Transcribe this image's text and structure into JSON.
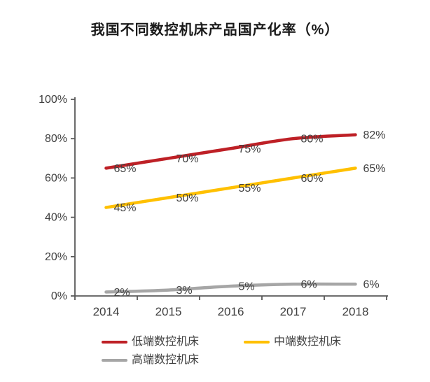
{
  "title": "我国不同数控机床产品国产化率（%）",
  "chart_data": {
    "type": "line",
    "smoothed": true,
    "grid": false,
    "legend_position": "bottom",
    "categories": [
      "2014",
      "2015",
      "2016",
      "2017",
      "2018"
    ],
    "series": [
      {
        "name": "低端数控机床",
        "color": "#BE2026",
        "values": [
          65,
          70,
          75,
          80,
          82
        ],
        "data_labels": [
          "65%",
          "70%",
          "75%",
          "80%",
          "82%"
        ]
      },
      {
        "name": "中端数控机床",
        "color": "#FFC000",
        "values": [
          45,
          50,
          55,
          60,
          65
        ],
        "data_labels": [
          "45%",
          "50%",
          "55%",
          "60%",
          "65%"
        ]
      },
      {
        "name": "高端数控机床",
        "color": "#A6A6A6",
        "values": [
          2,
          3,
          5,
          6,
          6
        ],
        "data_labels": [
          "2%",
          "3%",
          "5%",
          "6%",
          "6%"
        ]
      }
    ],
    "ylim": [
      0,
      100
    ],
    "y_tick_values": [
      0,
      20,
      40,
      60,
      80,
      100
    ],
    "y_tick_labels": [
      "0%",
      "20%",
      "40%",
      "60%",
      "80%",
      "100%"
    ],
    "xlabel": "",
    "ylabel": ""
  },
  "colors": {
    "background": "#ffffff",
    "axis": "#595959",
    "tick_label": "#404040",
    "data_label": "#404040",
    "title": "#1a1a1a"
  }
}
